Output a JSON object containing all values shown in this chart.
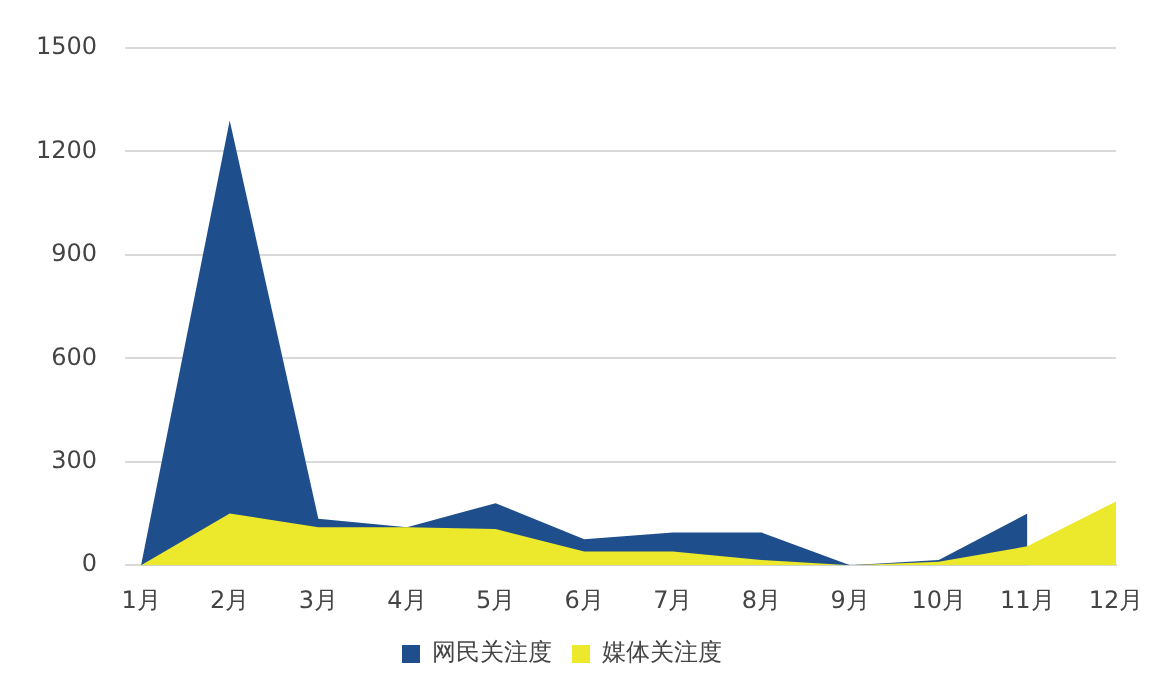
{
  "chart_data": {
    "type": "area",
    "categories": [
      "1月",
      "2月",
      "3月",
      "4月",
      "5月",
      "6月",
      "7月",
      "8月",
      "9月",
      "10月",
      "11月",
      "12月"
    ],
    "series": [
      {
        "name": "网民关注度",
        "color": "#1f4e8c",
        "values": [
          0,
          1290,
          135,
          110,
          180,
          75,
          95,
          95,
          0,
          15,
          150,
          null
        ]
      },
      {
        "name": "媒体关注度",
        "color": "#ece82c",
        "values": [
          0,
          150,
          110,
          110,
          105,
          40,
          40,
          15,
          0,
          10,
          55,
          185
        ]
      }
    ],
    "ylim": [
      0,
      1500
    ],
    "yticks": [
      0,
      300,
      600,
      900,
      1200,
      1500
    ],
    "grid": "y",
    "legend": "bottom"
  }
}
